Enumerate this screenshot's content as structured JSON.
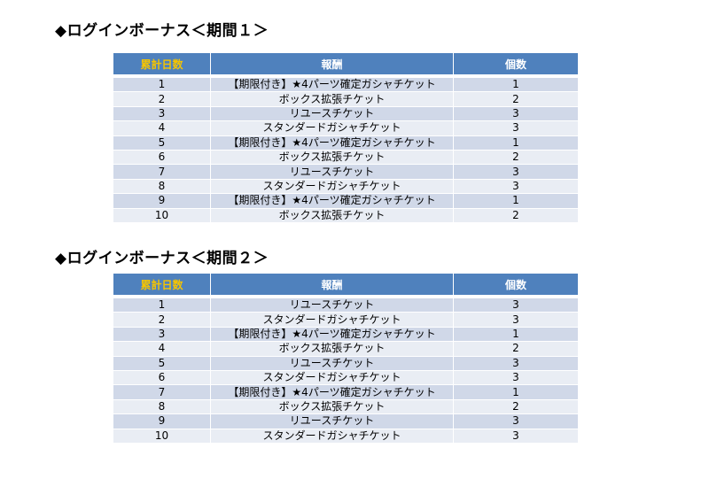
{
  "section1": {
    "title": "◆ログインボーナス＜期間１＞",
    "headers": {
      "days": "累計日数",
      "reward": "報酬",
      "count": "個数"
    },
    "rows": [
      {
        "day": "1",
        "reward": "【期限付き】★4パーツ確定ガシャチケット",
        "count": "1"
      },
      {
        "day": "2",
        "reward": "ボックス拡張チケット",
        "count": "2"
      },
      {
        "day": "3",
        "reward": "リユースチケット",
        "count": "3"
      },
      {
        "day": "4",
        "reward": "スタンダードガシャチケット",
        "count": "3"
      },
      {
        "day": "5",
        "reward": "【期限付き】★4パーツ確定ガシャチケット",
        "count": "1"
      },
      {
        "day": "6",
        "reward": "ボックス拡張チケット",
        "count": "2"
      },
      {
        "day": "7",
        "reward": "リユースチケット",
        "count": "3"
      },
      {
        "day": "8",
        "reward": "スタンダードガシャチケット",
        "count": "3"
      },
      {
        "day": "9",
        "reward": "【期限付き】★4パーツ確定ガシャチケット",
        "count": "1"
      },
      {
        "day": "10",
        "reward": "ボックス拡張チケット",
        "count": "2"
      }
    ]
  },
  "section2": {
    "title": "◆ログインボーナス＜期間２＞",
    "headers": {
      "days": "累計日数",
      "reward": "報酬",
      "count": "個数"
    },
    "rows": [
      {
        "day": "1",
        "reward": "リユースチケット",
        "count": "3"
      },
      {
        "day": "2",
        "reward": "スタンダードガシャチケット",
        "count": "3"
      },
      {
        "day": "3",
        "reward": "【期限付き】★4パーツ確定ガシャチケット",
        "count": "1"
      },
      {
        "day": "4",
        "reward": "ボックス拡張チケット",
        "count": "2"
      },
      {
        "day": "5",
        "reward": "リユースチケット",
        "count": "3"
      },
      {
        "day": "6",
        "reward": "スタンダードガシャチケット",
        "count": "3"
      },
      {
        "day": "7",
        "reward": "【期限付き】★4パーツ確定ガシャチケット",
        "count": "1"
      },
      {
        "day": "8",
        "reward": "ボックス拡張チケット",
        "count": "2"
      },
      {
        "day": "9",
        "reward": "リユースチケット",
        "count": "3"
      },
      {
        "day": "10",
        "reward": "スタンダードガシャチケット",
        "count": "3"
      }
    ]
  },
  "colors": {
    "header_bg": "#4f81bd",
    "header_text": "#ffffff",
    "days_header_text": "#f5c400",
    "row_odd": "#d0d8e8",
    "row_even": "#e9edf4"
  }
}
